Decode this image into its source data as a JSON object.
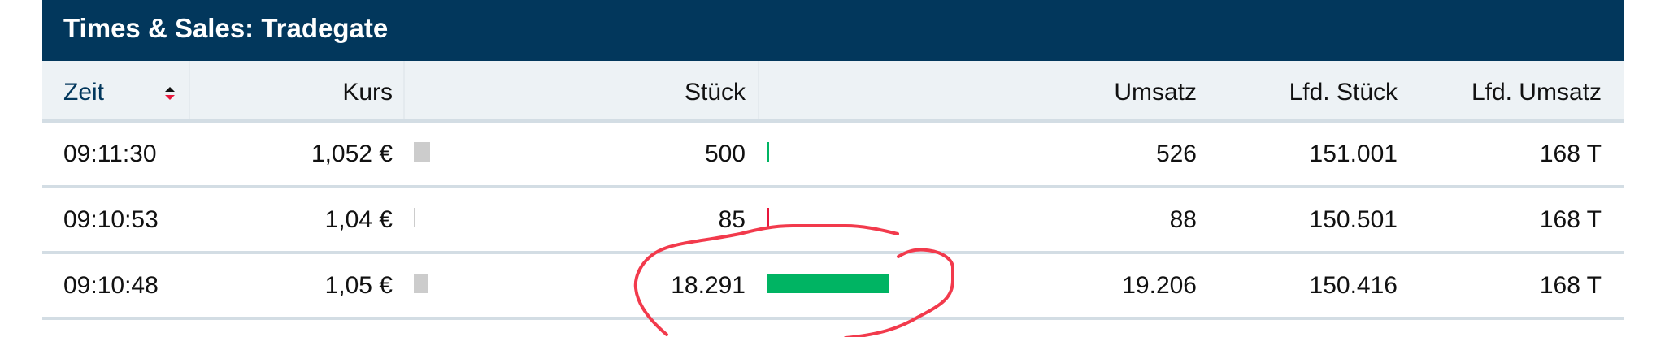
{
  "title": "Times & Sales: Tradegate",
  "columns": {
    "zeit": "Zeit",
    "kurs": "Kurs",
    "stueck": "Stück",
    "umsatz": "Umsatz",
    "lfd_stueck": "Lfd. Stück",
    "lfd_umsatz": "Lfd. Umsatz"
  },
  "sort": {
    "column": "Zeit",
    "icon": "sort-up-down-icon"
  },
  "colors": {
    "header_bg": "#02375c",
    "up": "#00b463",
    "down": "#e8173c",
    "neutral": "#cccccc",
    "annotation": "#f23a4c"
  },
  "rows": [
    {
      "zeit": "09:11:30",
      "kurs": "1,052 €",
      "stueck": "500",
      "umsatz": "526",
      "lfd_stueck": "151.001",
      "lfd_umsatz": "168 T",
      "direction": "up"
    },
    {
      "zeit": "09:10:53",
      "kurs": "1,04 €",
      "stueck": "85",
      "umsatz": "88",
      "lfd_stueck": "150.501",
      "lfd_umsatz": "168 T",
      "direction": "down"
    },
    {
      "zeit": "09:10:48",
      "kurs": "1,05 €",
      "stueck": "18.291",
      "umsatz": "19.206",
      "lfd_stueck": "150.416",
      "lfd_umsatz": "168 T",
      "direction": "up"
    }
  ]
}
